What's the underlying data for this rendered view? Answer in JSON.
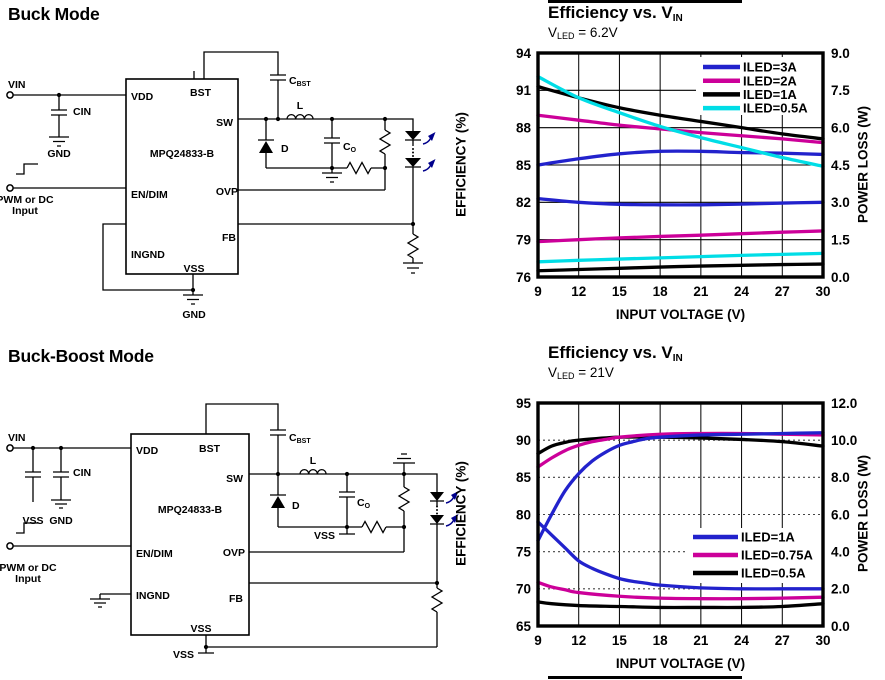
{
  "buck": {
    "title": "Buck Mode",
    "part": "MPQ24833-B",
    "pins": {
      "vdd": "VDD",
      "bst": "BST",
      "sw": "SW",
      "endim": "EN/DIM",
      "ovp": "OVP",
      "fb": "FB",
      "ingnd": "INGND",
      "vss": "VSS"
    },
    "labels": {
      "vin": "VIN",
      "cin": "CIN",
      "gnd_cin": "GND",
      "pwm_line1": "PWM or DC",
      "pwm_line2": "Input",
      "cbst_main": "C",
      "cbst_sub": "BST",
      "l": "L",
      "d": "D",
      "co_main": "C",
      "co_sub": "O",
      "gnd_out": "GND"
    }
  },
  "buckboost": {
    "title": "Buck-Boost Mode",
    "part": "MPQ24833-B",
    "pins": {
      "vdd": "VDD",
      "bst": "BST",
      "sw": "SW",
      "endim": "EN/DIM",
      "ovp": "OVP",
      "fb": "FB",
      "ingnd": "INGND",
      "vss": "VSS"
    },
    "labels": {
      "vin": "VIN",
      "cin": "CIN",
      "vss_cap": "VSS",
      "gnd_cin": "GND",
      "pwm_line1": "PWM or DC",
      "pwm_line2": "Input",
      "cbst_main": "C",
      "cbst_sub": "BST",
      "l": "L",
      "d": "D",
      "co_main": "C",
      "co_sub": "O",
      "vss_out": "VSS",
      "vss_bottom": "VSS"
    }
  },
  "chart_data": [
    {
      "type": "line",
      "title_main": "Efficiency vs. V",
      "title_sub": "IN",
      "condition": {
        "main": "V",
        "sub": "LED",
        "rest": " = 6.2V"
      },
      "xlabel": "INPUT VOLTAGE  (V)",
      "ylabel_left": "EFFICIENCY  (%)",
      "ylabel_right": "POWER LOSS  (W)",
      "x": {
        "min": 9,
        "max": 30,
        "ticks": [
          9,
          12,
          15,
          18,
          21,
          24,
          27,
          30
        ]
      },
      "y_left": {
        "min": 76,
        "max": 94,
        "ticks": [
          76,
          79,
          82,
          85,
          88,
          91,
          94
        ],
        "tick_labels": [
          "76",
          "79",
          "82",
          "85",
          "88",
          "91",
          "94"
        ]
      },
      "y_right": {
        "min": 0,
        "max": 9,
        "ticks": [
          0,
          1.5,
          3,
          4.5,
          6,
          7.5,
          9
        ],
        "tick_labels": [
          "0.0",
          "1.5",
          "3.0",
          "4.5",
          "6.0",
          "7.5",
          "9.0"
        ]
      },
      "legend": [
        {
          "label": "ILED=3A",
          "color": "#2222CC"
        },
        {
          "label": "ILED=2A",
          "color": "#CC0099"
        },
        {
          "label": "ILED=1A",
          "color": "#000000"
        },
        {
          "label": "ILED=0.5A",
          "color": "#00DDE6"
        }
      ],
      "series": [
        {
          "name": "Efficiency ILED=3A",
          "color": "#2222CC",
          "axis": "left",
          "points": [
            [
              9,
              85.0
            ],
            [
              12,
              85.5
            ],
            [
              15,
              85.9
            ],
            [
              18,
              86.1
            ],
            [
              21,
              86.1
            ],
            [
              24,
              86.0
            ],
            [
              27,
              85.95
            ],
            [
              30,
              85.85
            ]
          ]
        },
        {
          "name": "Efficiency ILED=2A",
          "color": "#CC0099",
          "axis": "left",
          "points": [
            [
              9,
              89.0
            ],
            [
              12,
              88.6
            ],
            [
              15,
              88.2
            ],
            [
              18,
              87.9
            ],
            [
              21,
              87.6
            ],
            [
              24,
              87.35
            ],
            [
              27,
              87.1
            ],
            [
              30,
              86.8
            ]
          ]
        },
        {
          "name": "Efficiency ILED=1A",
          "color": "#000000",
          "axis": "left",
          "points": [
            [
              9,
              91.3
            ],
            [
              12,
              90.4
            ],
            [
              15,
              89.6
            ],
            [
              18,
              89.0
            ],
            [
              21,
              88.5
            ],
            [
              24,
              88.0
            ],
            [
              27,
              87.5
            ],
            [
              30,
              87.1
            ]
          ]
        },
        {
          "name": "Efficiency ILED=0.5A",
          "color": "#00DDE6",
          "axis": "left",
          "points": [
            [
              9,
              92.1
            ],
            [
              12,
              90.4
            ],
            [
              15,
              89.2
            ],
            [
              18,
              88.1
            ],
            [
              21,
              87.2
            ],
            [
              24,
              86.4
            ],
            [
              27,
              85.6
            ],
            [
              30,
              84.9
            ]
          ]
        },
        {
          "name": "Power loss ILED=3A",
          "color": "#2222CC",
          "axis": "right",
          "points": [
            [
              9,
              3.15
            ],
            [
              12,
              3.0
            ],
            [
              15,
              2.92
            ],
            [
              18,
              2.9
            ],
            [
              21,
              2.9
            ],
            [
              24,
              2.93
            ],
            [
              27,
              2.97
            ],
            [
              30,
              3.0
            ]
          ]
        },
        {
          "name": "Power loss ILED=2A",
          "color": "#CC0099",
          "axis": "right",
          "points": [
            [
              9,
              1.42
            ],
            [
              12,
              1.5
            ],
            [
              15,
              1.57
            ],
            [
              18,
              1.63
            ],
            [
              21,
              1.68
            ],
            [
              24,
              1.74
            ],
            [
              27,
              1.8
            ],
            [
              30,
              1.85
            ]
          ]
        },
        {
          "name": "Power loss ILED=1A",
          "color": "#000000",
          "axis": "right",
          "points": [
            [
              9,
              0.25
            ],
            [
              12,
              0.3
            ],
            [
              15,
              0.35
            ],
            [
              18,
              0.4
            ],
            [
              21,
              0.44
            ],
            [
              24,
              0.47
            ],
            [
              27,
              0.5
            ],
            [
              30,
              0.52
            ]
          ]
        },
        {
          "name": "Power loss ILED=0.5A",
          "color": "#00DDE6",
          "axis": "right",
          "points": [
            [
              9,
              0.61
            ],
            [
              12,
              0.67
            ],
            [
              15,
              0.72
            ],
            [
              18,
              0.77
            ],
            [
              21,
              0.82
            ],
            [
              24,
              0.87
            ],
            [
              27,
              0.91
            ],
            [
              30,
              0.95
            ]
          ]
        }
      ],
      "layout": {
        "area": {
          "l": 98,
          "t": 53,
          "r": 383,
          "b": 277
        },
        "grid_h_dash": "",
        "legend_pos": {
          "bg": [
            256,
            57,
            126,
            58
          ],
          "y0": 67,
          "dh": 13.7,
          "x1": 263,
          "x2": 300,
          "tx": 303
        }
      }
    },
    {
      "type": "line",
      "title_main": "Efficiency vs. V",
      "title_sub": "IN",
      "condition": {
        "main": "V",
        "sub": "LED",
        "rest": " = 21V"
      },
      "xlabel": "INPUT VOLTAGE  (V)",
      "ylabel_left": "EFFICIENCY  (%)",
      "ylabel_right": "POWER LOSS  (W)",
      "x": {
        "min": 9,
        "max": 30,
        "ticks": [
          9,
          12,
          15,
          18,
          21,
          24,
          27,
          30
        ]
      },
      "y_left": {
        "min": 65,
        "max": 95,
        "ticks": [
          65,
          70,
          75,
          80,
          85,
          90,
          95
        ],
        "tick_labels": [
          "65",
          "70",
          "75",
          "80",
          "85",
          "90",
          "95"
        ]
      },
      "y_right": {
        "min": 0,
        "max": 12,
        "ticks": [
          0,
          2,
          4,
          6,
          8,
          10,
          12
        ],
        "tick_labels": [
          "0.0",
          "2.0",
          "4.0",
          "6.0",
          "8.0",
          "10.0",
          "12.0"
        ]
      },
      "legend": [
        {
          "label": "ILED=1A",
          "color": "#2222CC"
        },
        {
          "label": "ILED=0.75A",
          "color": "#CC0099"
        },
        {
          "label": "ILED=0.5A",
          "color": "#000000"
        }
      ],
      "series": [
        {
          "name": "Efficiency ILED=0.5A",
          "color": "#000000",
          "axis": "left",
          "points": [
            [
              9,
              88.2
            ],
            [
              10,
              89.2
            ],
            [
              11,
              89.7
            ],
            [
              12,
              90.0
            ],
            [
              15,
              90.4
            ],
            [
              18,
              90.4
            ],
            [
              21,
              90.3
            ],
            [
              24,
              90.1
            ],
            [
              27,
              89.8
            ],
            [
              30,
              89.2
            ]
          ]
        },
        {
          "name": "Efficiency ILED=0.75A",
          "color": "#CC0099",
          "axis": "left",
          "points": [
            [
              9,
              86.4
            ],
            [
              10,
              87.6
            ],
            [
              11,
              88.6
            ],
            [
              12,
              89.3
            ],
            [
              13,
              89.8
            ],
            [
              14,
              90.1
            ],
            [
              15,
              90.4
            ],
            [
              18,
              90.8
            ],
            [
              21,
              90.9
            ],
            [
              24,
              90.9
            ],
            [
              27,
              90.8
            ],
            [
              30,
              90.7
            ]
          ]
        },
        {
          "name": "Efficiency ILED=1A",
          "color": "#2222CC",
          "axis": "left",
          "points": [
            [
              9,
              76.5
            ],
            [
              10,
              80.0
            ],
            [
              11,
              83.2
            ],
            [
              12,
              85.5
            ],
            [
              13,
              87.2
            ],
            [
              14,
              88.4
            ],
            [
              15,
              89.3
            ],
            [
              16,
              89.8
            ],
            [
              17,
              90.2
            ],
            [
              18,
              90.4
            ],
            [
              21,
              90.7
            ],
            [
              24,
              90.8
            ],
            [
              27,
              90.9
            ],
            [
              30,
              91.0
            ]
          ]
        },
        {
          "name": "Power loss ILED=0.5A",
          "color": "#000000",
          "axis": "right",
          "points": [
            [
              9,
              1.3
            ],
            [
              10,
              1.2
            ],
            [
              12,
              1.1
            ],
            [
              15,
              1.05
            ],
            [
              18,
              1.0
            ],
            [
              21,
              1.0
            ],
            [
              24,
              1.0
            ],
            [
              27,
              1.05
            ],
            [
              30,
              1.2
            ]
          ]
        },
        {
          "name": "Power loss ILED=0.75A",
          "color": "#CC0099",
          "axis": "right",
          "points": [
            [
              9,
              2.35
            ],
            [
              10,
              2.1
            ],
            [
              11,
              1.95
            ],
            [
              12,
              1.8
            ],
            [
              15,
              1.6
            ],
            [
              18,
              1.5
            ],
            [
              21,
              1.47
            ],
            [
              24,
              1.47
            ],
            [
              27,
              1.5
            ],
            [
              30,
              1.55
            ]
          ]
        },
        {
          "name": "Power loss ILED=1A",
          "color": "#2222CC",
          "axis": "right",
          "points": [
            [
              9,
              5.6
            ],
            [
              10,
              4.9
            ],
            [
              11,
              4.2
            ],
            [
              12,
              3.5
            ],
            [
              13,
              3.1
            ],
            [
              14,
              2.8
            ],
            [
              15,
              2.55
            ],
            [
              16,
              2.4
            ],
            [
              17,
              2.3
            ],
            [
              18,
              2.2
            ],
            [
              21,
              2.05
            ],
            [
              24,
              2.0
            ],
            [
              27,
              2.0
            ],
            [
              30,
              2.0
            ]
          ]
        }
      ],
      "layout": {
        "area": {
          "l": 98,
          "t": 63,
          "r": 383,
          "b": 286
        },
        "grid_h_dash": "2,3",
        "legend_pos": {
          "bg": [
            247,
            188,
            135,
            55
          ],
          "y0": 197,
          "dh": 18,
          "x1": 253,
          "x2": 298,
          "tx": 301
        }
      }
    }
  ]
}
